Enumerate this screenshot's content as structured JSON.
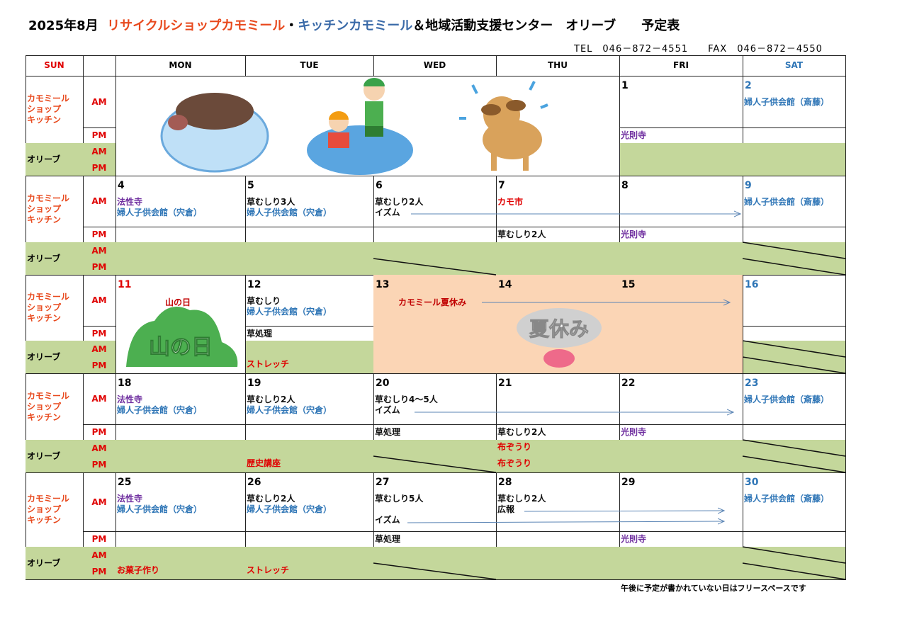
{
  "title": {
    "month": "2025年8月",
    "part1": "リサイクルショップカモミール",
    "sep": "・",
    "part2": "キッチンカモミール",
    "part3": "＆地域活動支援センター　オリーブ　　予定表"
  },
  "contact": {
    "tel": "TEL　046－872－4551",
    "fax": "FAX　046－872－4550"
  },
  "headers": [
    "SUN",
    "",
    "MON",
    "TUE",
    "WED",
    "THU",
    "FRI",
    "SAT"
  ],
  "row_labels": {
    "kamomile": "カモミール\nショップ\nキッチン",
    "olive": "オリーブ",
    "am": "AM",
    "pm": "PM"
  },
  "colors": {
    "olive": "#c4d79b",
    "summer": "#fbd5b5",
    "purple": "#7030a0",
    "blue": "#2e75b6",
    "red": "#e00000",
    "orange": "#e8491d"
  },
  "weeks": [
    {
      "days": [
        {
          "date": ""
        },
        {
          "date": ""
        },
        {
          "date": ""
        },
        {
          "date": ""
        },
        {
          "date": "1",
          "am": [],
          "pm": [
            {
              "t": "光則寺",
              "c": "purple"
            }
          ]
        },
        {
          "date": "2",
          "date_c": "sat",
          "am": [
            {
              "t": "婦人子供会館（斎藤）",
              "c": "blue"
            }
          ]
        }
      ],
      "illustration": "boar-kids-dog"
    },
    {
      "days": [
        {
          "date": "4",
          "am": [
            {
              "t": "法性寺",
              "c": "purple"
            },
            {
              "t": "婦人子供会館（宍倉）",
              "c": "blue"
            }
          ]
        },
        {
          "date": "5",
          "am": [
            {
              "t": "草むしり3人",
              "c": "black"
            },
            {
              "t": "婦人子供会館（宍倉）",
              "c": "blue"
            }
          ]
        },
        {
          "date": "6",
          "am": [
            {
              "t": "草むしり2人",
              "c": "black"
            },
            {
              "t": "イズム",
              "c": "black"
            }
          ],
          "olive_pm_closed": true
        },
        {
          "date": "7",
          "am": [
            {
              "t": "カモ市",
              "c": "red"
            }
          ],
          "pm": [
            {
              "t": "草むしり2人",
              "c": "black"
            }
          ]
        },
        {
          "date": "8",
          "pm": [
            {
              "t": "光則寺",
              "c": "purple"
            }
          ]
        },
        {
          "date": "9",
          "date_c": "sat",
          "am": [
            {
              "t": "婦人子供会館（斎藤）",
              "c": "blue"
            }
          ],
          "olive_am_closed": true,
          "olive_pm_closed": true
        }
      ]
    },
    {
      "days": [
        {
          "date": "11",
          "date_c": "sun",
          "holiday": "山の日",
          "holiday_logo": "山の日"
        },
        {
          "date": "12",
          "am": [
            {
              "t": "草むしり",
              "c": "black"
            },
            {
              "t": "婦人子供会館（宍倉）",
              "c": "blue"
            }
          ],
          "pm": [
            {
              "t": "草処理",
              "c": "black"
            }
          ],
          "olive_pm": [
            {
              "t": "ストレッチ",
              "c": "red"
            }
          ]
        },
        {
          "date": "13"
        },
        {
          "date": "14"
        },
        {
          "date": "15"
        },
        {
          "date": "16",
          "date_c": "sat",
          "olive_am_closed": true,
          "olive_pm_closed": true
        }
      ],
      "summer": {
        "label": "カモミール夏休み",
        "logo": "夏休み"
      }
    },
    {
      "days": [
        {
          "date": "18",
          "am": [
            {
              "t": "法性寺",
              "c": "purple"
            },
            {
              "t": "婦人子供会館（宍倉）",
              "c": "blue"
            }
          ]
        },
        {
          "date": "19",
          "am": [
            {
              "t": "草むしり2人",
              "c": "black"
            },
            {
              "t": "婦人子供会館（宍倉）",
              "c": "blue"
            }
          ],
          "olive_pm": [
            {
              "t": "歴史講座",
              "c": "red"
            }
          ]
        },
        {
          "date": "20",
          "am": [
            {
              "t": "草むしり4～5人",
              "c": "black"
            },
            {
              "t": "イズム",
              "c": "black"
            }
          ],
          "pm": [
            {
              "t": "草処理",
              "c": "black"
            }
          ],
          "olive_pm_closed": true
        },
        {
          "date": "21",
          "pm": [
            {
              "t": "草むしり2人",
              "c": "black"
            }
          ],
          "olive_am": [
            {
              "t": "布ぞうり",
              "c": "red"
            }
          ],
          "olive_pm": [
            {
              "t": "布ぞうり",
              "c": "red"
            }
          ]
        },
        {
          "date": "22",
          "pm": [
            {
              "t": "光則寺",
              "c": "purple"
            }
          ]
        },
        {
          "date": "23",
          "date_c": "sat",
          "am": [
            {
              "t": "婦人子供会館（斎藤）",
              "c": "blue"
            }
          ],
          "olive_am_closed": true,
          "olive_pm_closed": true
        }
      ]
    },
    {
      "days": [
        {
          "date": "25",
          "am": [
            {
              "t": "法性寺",
              "c": "purple"
            },
            {
              "t": "婦人子供会館（宍倉）",
              "c": "blue"
            }
          ],
          "olive_pm": [
            {
              "t": "お菓子作り",
              "c": "red"
            }
          ]
        },
        {
          "date": "26",
          "am": [
            {
              "t": "草むしり2人",
              "c": "black"
            },
            {
              "t": "婦人子供会館（宍倉）",
              "c": "blue"
            }
          ],
          "olive_pm": [
            {
              "t": "ストレッチ",
              "c": "red"
            }
          ]
        },
        {
          "date": "27",
          "am": [
            {
              "t": "草むしり5人",
              "c": "black"
            },
            {
              "t": "",
              "c": "black"
            },
            {
              "t": "イズム",
              "c": "black"
            }
          ],
          "pm": [
            {
              "t": "草処理",
              "c": "black"
            }
          ],
          "olive_pm_closed": true
        },
        {
          "date": "28",
          "am": [
            {
              "t": "草むしり2人",
              "c": "black"
            },
            {
              "t": "広報",
              "c": "black"
            }
          ]
        },
        {
          "date": "29",
          "pm": [
            {
              "t": "光則寺",
              "c": "purple"
            }
          ]
        },
        {
          "date": "30",
          "date_c": "sat",
          "am": [
            {
              "t": "婦人子供会館（斎藤）",
              "c": "blue"
            }
          ],
          "olive_am_closed": true,
          "olive_pm_closed": true
        }
      ]
    }
  ],
  "footer": "午後に予定が書かれていない日はフリースペースです"
}
